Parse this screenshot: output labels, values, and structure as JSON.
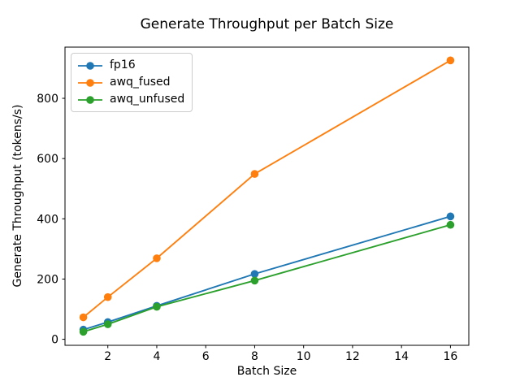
{
  "chart_data": {
    "type": "line",
    "title": "Generate Throughput per Batch Size",
    "xlabel": "Batch Size",
    "ylabel": "Generate Throughput (tokens/s)",
    "x": [
      1,
      2,
      4,
      8,
      16
    ],
    "series": [
      {
        "name": "fp16",
        "color": "#1f77b4",
        "values": [
          32,
          57,
          111,
          217,
          408
        ]
      },
      {
        "name": "awq_fused",
        "color": "#ff7f0e",
        "values": [
          73,
          140,
          269,
          549,
          926
        ]
      },
      {
        "name": "awq_unfused",
        "color": "#2ca02c",
        "values": [
          25,
          50,
          108,
          195,
          380
        ]
      }
    ],
    "xlim": [
      0.25,
      16.75
    ],
    "ylim": [
      -20,
      970
    ],
    "xticks": [
      2,
      4,
      6,
      8,
      10,
      12,
      14,
      16
    ],
    "yticks": [
      0,
      200,
      400,
      600,
      800
    ],
    "grid": false,
    "legend_position": "upper left",
    "background_color": "#ffffff",
    "axes_color": "#000000",
    "legend_border_color": "#cccccc"
  }
}
